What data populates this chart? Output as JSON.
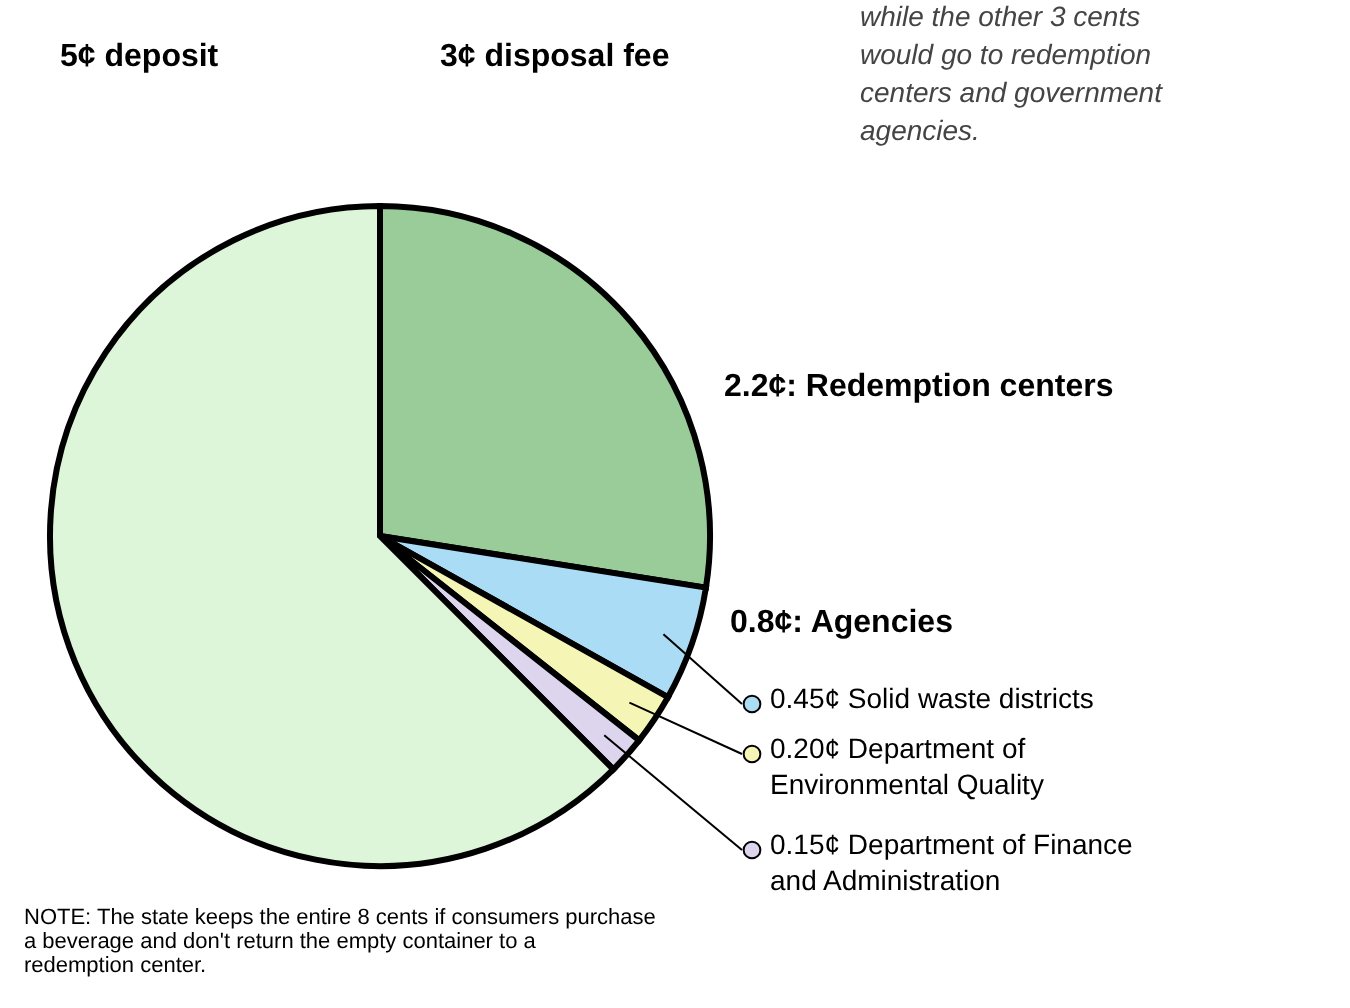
{
  "chart_data": {
    "type": "pie",
    "categories": [
      "2.2¢: Redemption centers",
      "0.45¢ Solid waste districts",
      "0.20¢ Department of Environmental Quality",
      "0.15¢ Department of Finance and Administration",
      "5¢ deposit"
    ],
    "values": [
      2.2,
      0.45,
      0.2,
      0.15,
      5
    ],
    "legend": "right",
    "colors": [
      "#99cc99",
      "#aaddf5",
      "#f5f5b5",
      "#ddd5ee",
      "#ddf5d8"
    ],
    "annotations": [
      "3¢ disposal fee",
      "0.8¢: Agencies",
      "while the other 3 cents would go to redemption centers and government agencies.",
      "NOTE: The state keeps the entire 8 cents if consumers purchase a beverage and don't return the empty container to a redemption center."
    ]
  }
}
